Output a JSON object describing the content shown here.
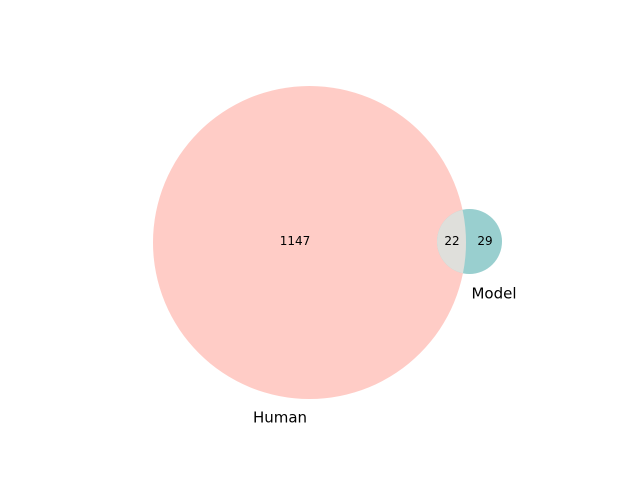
{
  "chart_data": {
    "type": "venn",
    "sets": [
      {
        "name": "Human",
        "color": "#ffccc6"
      },
      {
        "name": "Model",
        "color": "#99cfcf"
      }
    ],
    "regions": {
      "human_only": 1147,
      "model_only": 29,
      "both": 22
    },
    "intersection_color": "#dfdfdb"
  }
}
